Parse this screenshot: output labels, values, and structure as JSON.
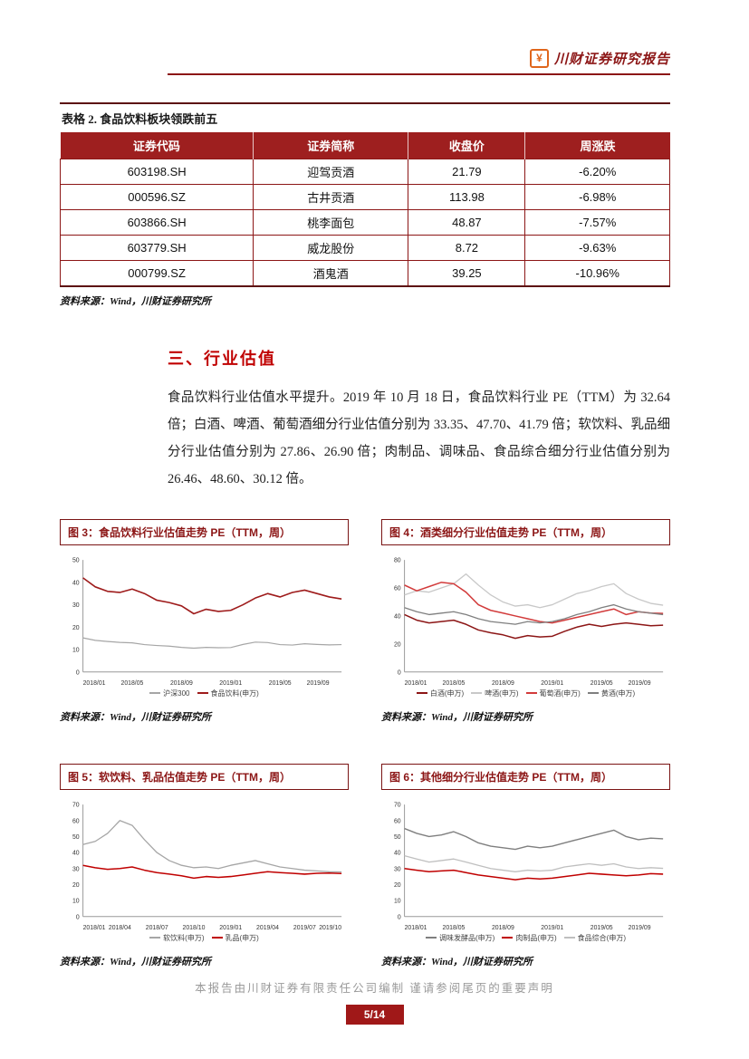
{
  "header": {
    "brand": "川财证券研究报告"
  },
  "colors": {
    "accent": "#8c1616",
    "heading_red": "#c00000",
    "table_header_bg": "#9e1f1f",
    "footer_badge_bg": "#a01818",
    "logo_orange": "#e0661c"
  },
  "table": {
    "title": "表格 2. 食品饮料板块领跌前五",
    "columns": [
      "证券代码",
      "证券简称",
      "收盘价",
      "周涨跌"
    ],
    "rows": [
      [
        "603198.SH",
        "迎驾贡酒",
        "21.79",
        "-6.20%"
      ],
      [
        "000596.SZ",
        "古井贡酒",
        "113.98",
        "-6.98%"
      ],
      [
        "603866.SH",
        "桃李面包",
        "48.87",
        "-7.57%"
      ],
      [
        "603779.SH",
        "威龙股份",
        "8.72",
        "-9.63%"
      ],
      [
        "000799.SZ",
        "酒鬼酒",
        "39.25",
        "-10.96%"
      ]
    ],
    "source": "资料来源：Wind，川财证券研究所"
  },
  "section": {
    "heading": "三、行业估值",
    "paragraph": "食品饮料行业估值水平提升。2019 年 10 月 18 日，食品饮料行业 PE（TTM）为 32.64 倍；白酒、啤酒、葡萄酒细分行业估值分别为 33.35、47.70、41.79 倍；软饮料、乳品细分行业估值分别为 27.86、26.90 倍；肉制品、调味品、食品综合细分行业估值分别为 26.46、48.60、30.12 倍。"
  },
  "figures": [
    {
      "title": "图 3：食品饮料行业估值走势 PE（TTM，周）",
      "source": "资料来源：Wind，川财证券研究所",
      "chart": {
        "type": "line",
        "ymin": 0,
        "ymax": 50,
        "yticks": [
          0,
          10,
          20,
          30,
          40,
          50
        ],
        "xticks": [
          "2018/01",
          "2018/05",
          "2018/09",
          "2019/01",
          "2019/05",
          "2019/09"
        ],
        "xtick_idx": [
          0,
          4,
          8,
          12,
          16,
          20
        ],
        "series": [
          {
            "name": "沪深300",
            "color": "#a6a6a6",
            "width": 1.2,
            "values": [
              15.2,
              14.1,
              13.6,
              13.2,
              13.0,
              12.2,
              11.8,
              11.5,
              11.0,
              10.6,
              11.0,
              10.8,
              10.9,
              12.3,
              13.3,
              13.1,
              12.2,
              12.0,
              12.6,
              12.3,
              12.1,
              12.2
            ]
          },
          {
            "name": "食品饮料(申万)",
            "color": "#9e1b1b",
            "width": 1.6,
            "values": [
              42.0,
              38.0,
              36.0,
              35.5,
              37.0,
              35.0,
              32.0,
              31.0,
              29.5,
              26.0,
              28.0,
              27.0,
              27.5,
              30.0,
              33.0,
              35.0,
              33.5,
              35.5,
              36.5,
              35.0,
              33.5,
              32.6
            ]
          }
        ]
      }
    },
    {
      "title": "图 4：酒类细分行业估值走势 PE（TTM，周）",
      "source": "资料来源：Wind，川财证券研究所",
      "chart": {
        "type": "line",
        "ymin": 0,
        "ymax": 80,
        "yticks": [
          0,
          20,
          40,
          60,
          80
        ],
        "xticks": [
          "2018/01",
          "2018/05",
          "2018/09",
          "2019/01",
          "2019/05",
          "2019/09"
        ],
        "xtick_idx": [
          0,
          4,
          8,
          12,
          16,
          20
        ],
        "series": [
          {
            "name": "白酒(申万)",
            "color": "#8c1616",
            "width": 1.5,
            "values": [
              41,
              37,
              35,
              36,
              37,
              34,
              30,
              28,
              26.5,
              24,
              26,
              25,
              25.5,
              29,
              32,
              34,
              32.5,
              34,
              35,
              34,
              33,
              33.4
            ]
          },
          {
            "name": "啤酒(申万)",
            "color": "#c8c8c8",
            "width": 1.3,
            "values": [
              55,
              58,
              57,
              60,
              63,
              70,
              62,
              55,
              50,
              47,
              48,
              46,
              48,
              52,
              56,
              58,
              61,
              63,
              56,
              52,
              49,
              47.7
            ]
          },
          {
            "name": "葡萄酒(申万)",
            "color": "#d23b3b",
            "width": 1.5,
            "values": [
              62,
              58,
              61,
              64,
              63,
              57,
              48,
              44,
              42,
              40,
              38,
              36,
              35,
              37,
              39,
              41,
              43,
              45,
              41,
              43,
              42,
              41.8
            ]
          },
          {
            "name": "黄酒(申万)",
            "color": "#7f7f7f",
            "width": 1.3,
            "values": [
              46,
              43,
              41,
              42,
              43,
              41,
              38,
              36,
              35,
              34,
              36,
              35,
              36,
              38,
              41,
              43,
              46,
              48,
              45,
              43,
              42,
              41
            ]
          }
        ]
      }
    },
    {
      "title": "图 5：软饮料、乳品估值走势 PE（TTM，周）",
      "source": "资料来源：Wind，川财证券研究所",
      "chart": {
        "type": "line",
        "ymin": 0,
        "ymax": 70,
        "yticks": [
          0,
          10,
          20,
          30,
          40,
          50,
          60,
          70
        ],
        "xticks": [
          "2018/01",
          "2018/04",
          "2018/07",
          "2018/10",
          "2019/01",
          "2019/04",
          "2019/07",
          "2019/10"
        ],
        "xtick_idx": [
          0,
          3,
          6,
          9,
          12,
          15,
          18,
          21
        ],
        "series": [
          {
            "name": "软饮料(申万)",
            "color": "#a6a6a6",
            "width": 1.3,
            "values": [
              45,
              47,
              52,
              60,
              57,
              48,
              40,
              35,
              32,
              30.5,
              31,
              30,
              32,
              33.5,
              35,
              33,
              31,
              30,
              29,
              28.5,
              28,
              27.9
            ]
          },
          {
            "name": "乳品(申万)",
            "color": "#c00000",
            "width": 1.5,
            "values": [
              32,
              30.5,
              29.5,
              30,
              31,
              29,
              27.5,
              26.5,
              25.5,
              24,
              25,
              24.5,
              25,
              26,
              27,
              28,
              27.5,
              27,
              26.5,
              27,
              27.2,
              26.9
            ]
          }
        ]
      }
    },
    {
      "title": "图 6：其他细分行业估值走势 PE（TTM，周）",
      "source": "资料来源：Wind，川财证券研究所",
      "chart": {
        "type": "line",
        "ymin": 0,
        "ymax": 70,
        "yticks": [
          0,
          10,
          20,
          30,
          40,
          50,
          60,
          70
        ],
        "xticks": [
          "2018/01",
          "2018/05",
          "2018/09",
          "2019/01",
          "2019/05",
          "2019/09"
        ],
        "xtick_idx": [
          0,
          4,
          8,
          12,
          16,
          20
        ],
        "series": [
          {
            "name": "调味发酵品(申万)",
            "color": "#7f7f7f",
            "width": 1.4,
            "values": [
              55,
              52,
              50,
              51,
              53,
              50,
              46,
              44,
              43,
              42,
              44,
              43,
              44,
              46,
              48,
              50,
              52,
              54,
              50,
              48,
              49,
              48.6
            ]
          },
          {
            "name": "肉制品(申万)",
            "color": "#c00000",
            "width": 1.5,
            "values": [
              30,
              29,
              28,
              28.5,
              29,
              27.5,
              26,
              25,
              24,
              23,
              24,
              23.5,
              24,
              25,
              26,
              27,
              26.5,
              26,
              25.5,
              26,
              26.8,
              26.5
            ]
          },
          {
            "name": "食品综合(申万)",
            "color": "#bfbfbf",
            "width": 1.3,
            "values": [
              38,
              36,
              34,
              35,
              36,
              34,
              32,
              30,
              29,
              28,
              29,
              28.5,
              29,
              31,
              32,
              33,
              32,
              33,
              31,
              30,
              30.5,
              30.1
            ]
          }
        ]
      }
    }
  ],
  "footer": {
    "disclaimer": "本报告由川财证券有限责任公司编制 谨请参阅尾页的重要声明",
    "page": "5/14"
  }
}
